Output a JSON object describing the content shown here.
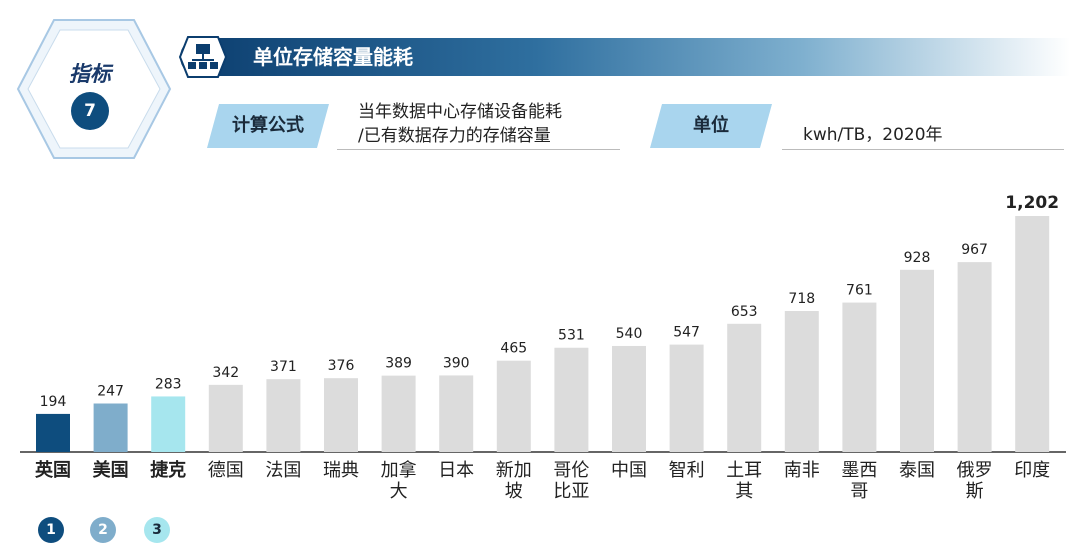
{
  "indicator": {
    "label": "指标",
    "number": "7"
  },
  "header": {
    "title": "单位存储容量能耗"
  },
  "formula": {
    "tag": "计算公式",
    "line1": "当年数据中心存储设备能耗",
    "line2": "/已有数据存力的存储容量"
  },
  "unit": {
    "tag": "单位",
    "text": "kwh/TB，2020年"
  },
  "ranks": [
    "1",
    "2",
    "3"
  ],
  "colors": {
    "rank1": "#0e4d7e",
    "rank2": "#7fadcb",
    "rank3": "#a6e6ee",
    "other": "#dcdcdc",
    "accent": "#0b3d6e"
  },
  "chart_data": {
    "type": "bar",
    "categories": [
      "英国",
      "美国",
      "捷克",
      "德国",
      "法国",
      "瑞典",
      "加拿大",
      "日本",
      "新加坡",
      "哥伦比亚",
      "中国",
      "智利",
      "土耳其",
      "南非",
      "墨西哥",
      "泰国",
      "俄罗斯",
      "印度"
    ],
    "category_lines": [
      [
        "英国"
      ],
      [
        "美国"
      ],
      [
        "捷克"
      ],
      [
        "德国"
      ],
      [
        "法国"
      ],
      [
        "瑞典"
      ],
      [
        "加拿",
        "大"
      ],
      [
        "日本"
      ],
      [
        "新加",
        "坡"
      ],
      [
        "哥伦",
        "比亚"
      ],
      [
        "中国"
      ],
      [
        "智利"
      ],
      [
        "土耳",
        "其"
      ],
      [
        "南非"
      ],
      [
        "墨西",
        "哥"
      ],
      [
        "泰国"
      ],
      [
        "俄罗",
        "斯"
      ],
      [
        "印度"
      ]
    ],
    "values": [
      194,
      247,
      283,
      342,
      371,
      376,
      389,
      390,
      465,
      531,
      540,
      547,
      653,
      718,
      761,
      928,
      967,
      1202
    ],
    "value_labels": [
      "194",
      "247",
      "283",
      "342",
      "371",
      "376",
      "389",
      "390",
      "465",
      "531",
      "540",
      "547",
      "653",
      "718",
      "761",
      "928",
      "967",
      "1,202"
    ],
    "ylim": [
      0,
      1202
    ],
    "grid": false
  }
}
